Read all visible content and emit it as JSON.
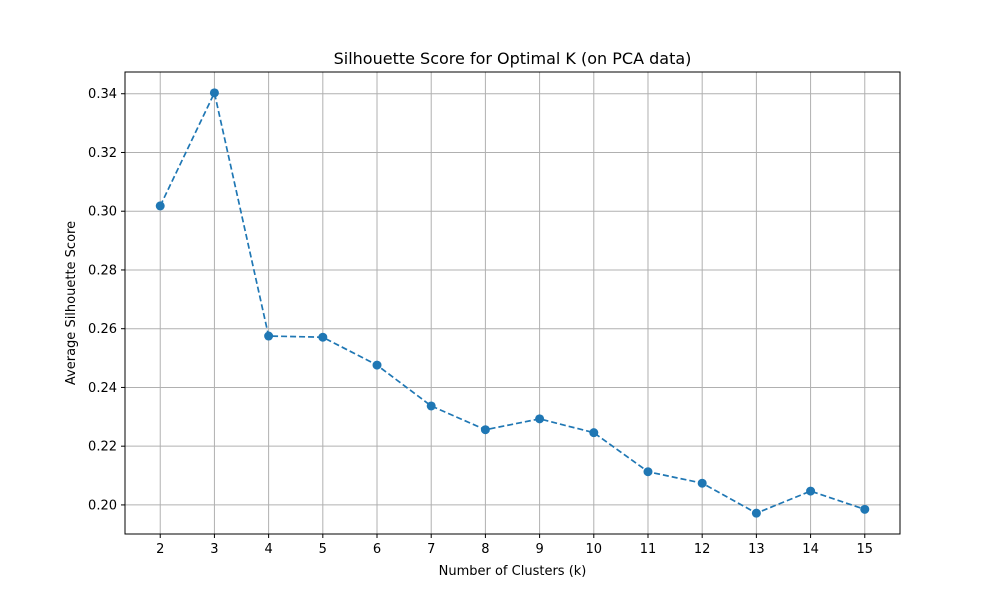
{
  "chart_data": {
    "type": "line",
    "title": "Silhouette Score for Optimal K (on PCA data)",
    "xlabel": "Number of Clusters (k)",
    "ylabel": "Average Silhouette Score",
    "x": [
      2,
      3,
      4,
      5,
      6,
      7,
      8,
      9,
      10,
      11,
      12,
      13,
      14,
      15
    ],
    "series": [
      {
        "values": [
          0.3018,
          0.3403,
          0.2575,
          0.2571,
          0.2476,
          0.2337,
          0.2256,
          0.2293,
          0.2246,
          0.2113,
          0.2074,
          0.1972,
          0.2047,
          0.1985
        ]
      }
    ],
    "xticks": [
      "2",
      "3",
      "4",
      "5",
      "6",
      "7",
      "8",
      "9",
      "10",
      "11",
      "12",
      "13",
      "14",
      "15"
    ],
    "yticks": [
      "0.20",
      "0.22",
      "0.24",
      "0.26",
      "0.28",
      "0.30",
      "0.32",
      "0.34"
    ],
    "xlim": [
      1.35,
      15.65
    ],
    "ylim": [
      0.1901,
      0.3474
    ],
    "grid": true,
    "line_style": "dashed",
    "marker": "circle",
    "colors": {
      "series": "#1f77b4",
      "grid": "#b0b0b0",
      "axes": "#000000"
    }
  }
}
